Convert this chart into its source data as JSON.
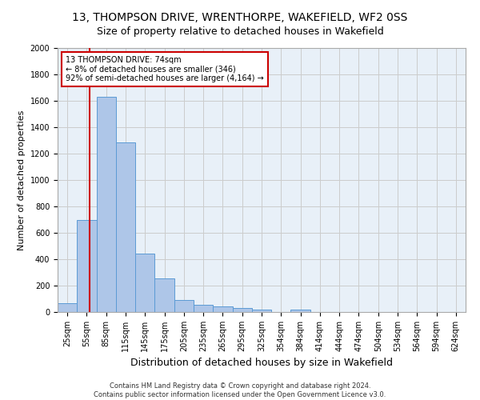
{
  "title_line1": "13, THOMPSON DRIVE, WRENTHORPE, WAKEFIELD, WF2 0SS",
  "title_line2": "Size of property relative to detached houses in Wakefield",
  "xlabel": "Distribution of detached houses by size in Wakefield",
  "ylabel": "Number of detached properties",
  "categories": [
    "25sqm",
    "55sqm",
    "85sqm",
    "115sqm",
    "145sqm",
    "175sqm",
    "205sqm",
    "235sqm",
    "265sqm",
    "295sqm",
    "325sqm",
    "354sqm",
    "384sqm",
    "414sqm",
    "444sqm",
    "474sqm",
    "504sqm",
    "534sqm",
    "564sqm",
    "594sqm",
    "624sqm"
  ],
  "values": [
    65,
    695,
    1630,
    1285,
    445,
    255,
    90,
    55,
    40,
    28,
    20,
    0,
    18,
    0,
    0,
    0,
    0,
    0,
    0,
    0,
    0
  ],
  "bar_color": "#aec6e8",
  "bar_edge_color": "#5b9bd5",
  "vline_color": "#cc0000",
  "annotation_text": "13 THOMPSON DRIVE: 74sqm\n← 8% of detached houses are smaller (346)\n92% of semi-detached houses are larger (4,164) →",
  "annotation_box_color": "#ffffff",
  "annotation_box_edge": "#cc0000",
  "ylim": [
    0,
    2000
  ],
  "yticks": [
    0,
    200,
    400,
    600,
    800,
    1000,
    1200,
    1400,
    1600,
    1800,
    2000
  ],
  "footer_line1": "Contains HM Land Registry data © Crown copyright and database right 2024.",
  "footer_line2": "Contains public sector information licensed under the Open Government Licence v3.0.",
  "bg_color": "#ffffff",
  "plot_bg_color": "#e8f0f8",
  "grid_color": "#cccccc",
  "title_fontsize": 10,
  "subtitle_fontsize": 9,
  "axis_label_fontsize": 8,
  "tick_fontsize": 7,
  "annotation_fontsize": 7,
  "footer_fontsize": 6,
  "bar_width": 1.0,
  "vline_pos": 1.133
}
